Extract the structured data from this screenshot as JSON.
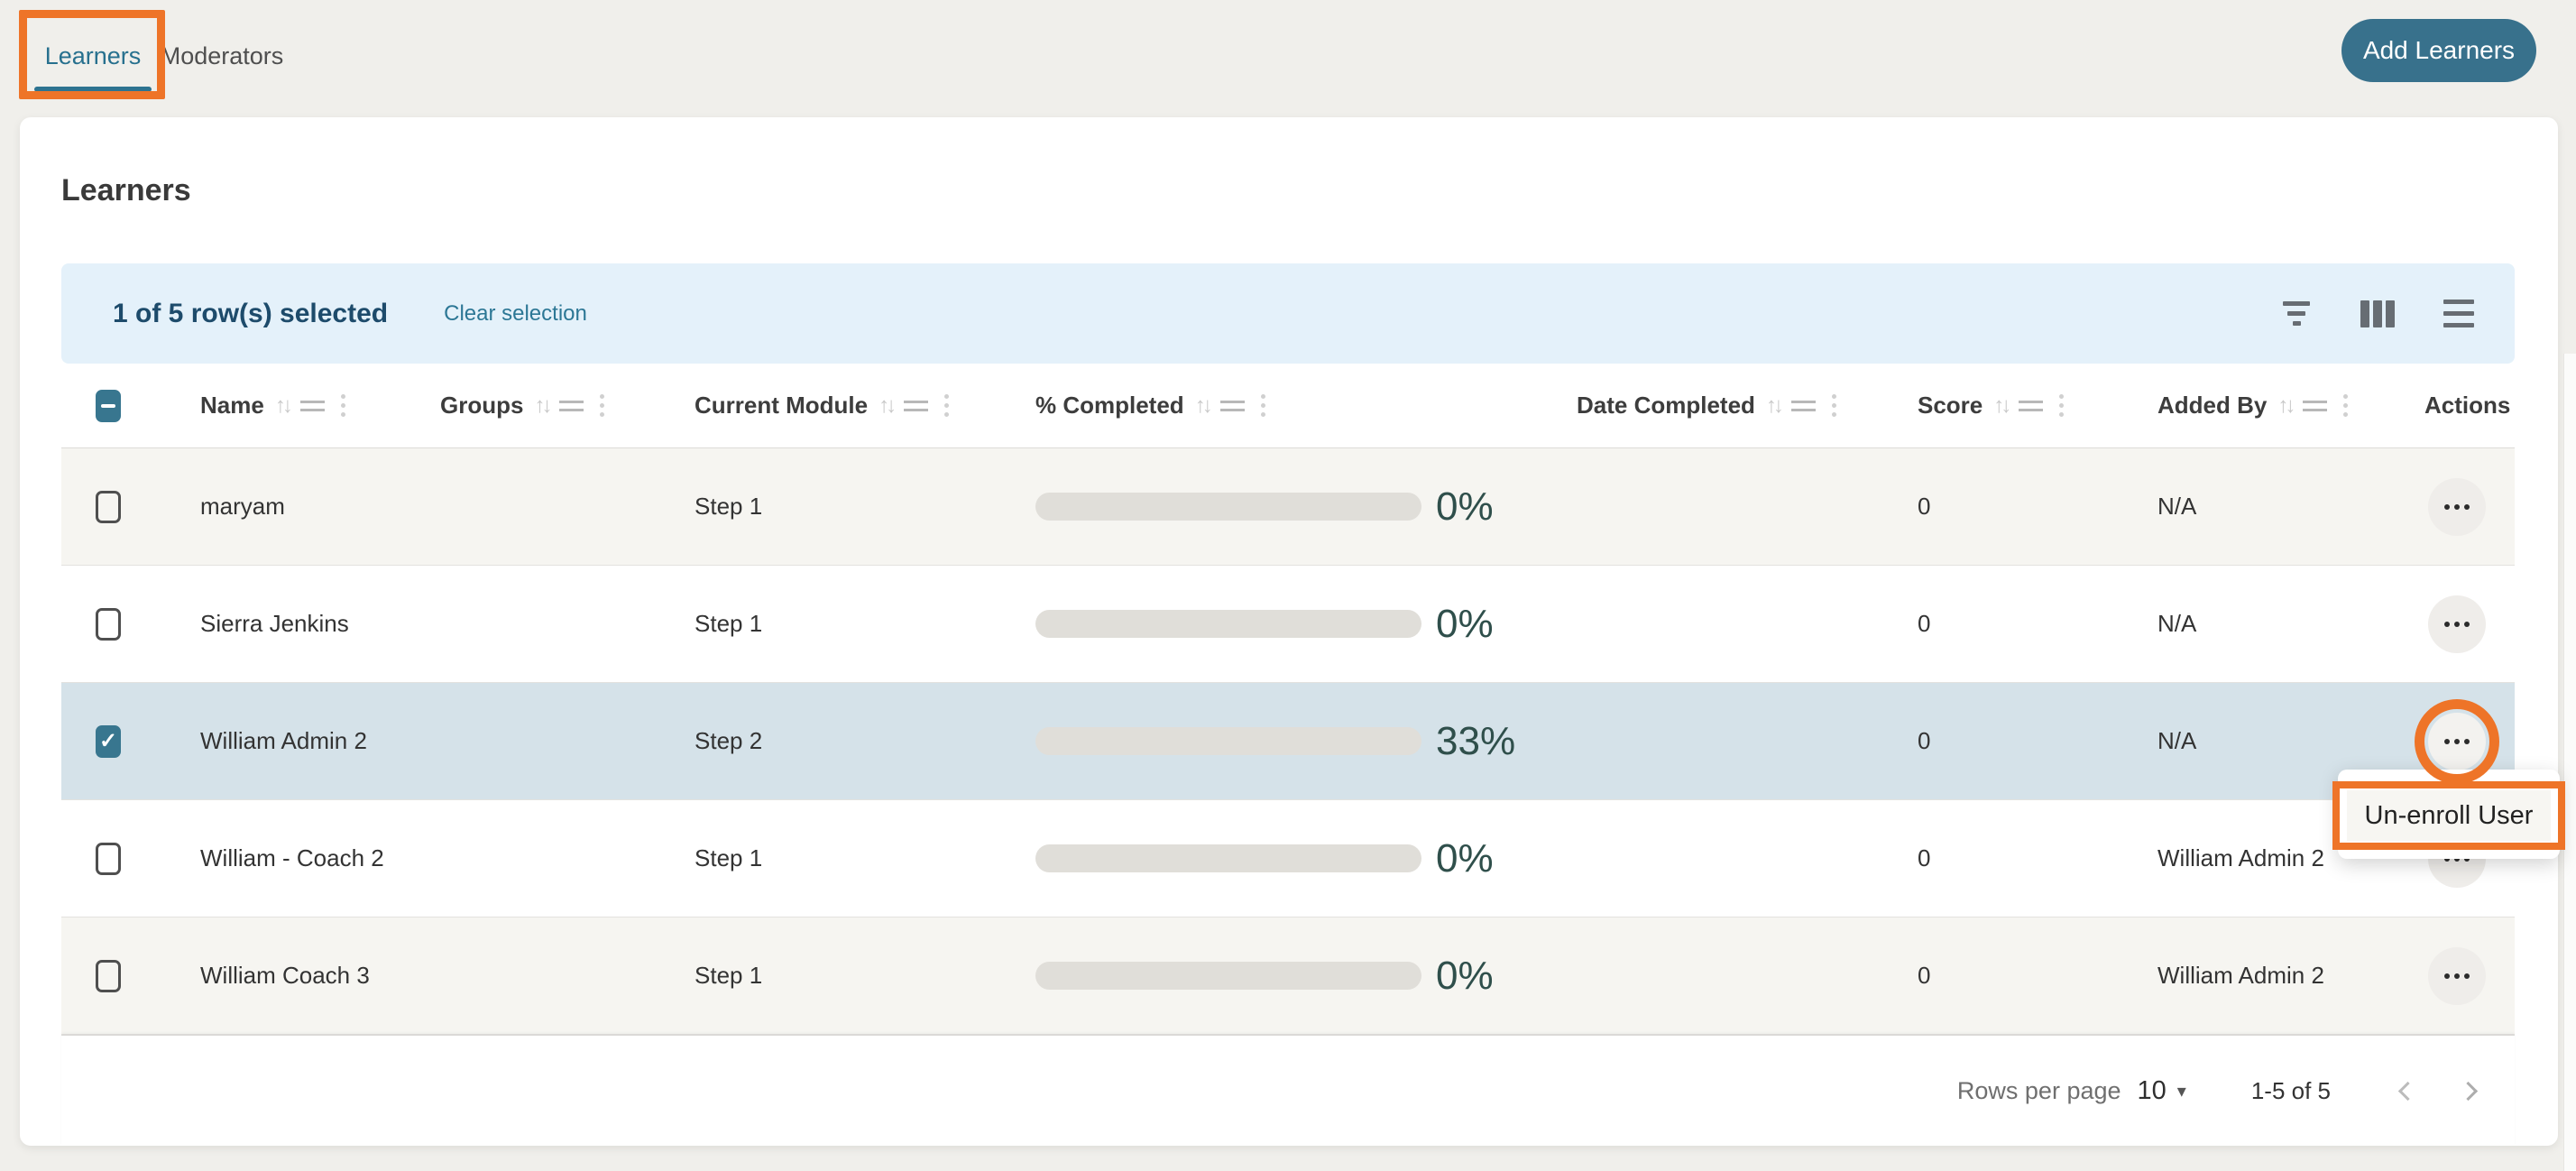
{
  "tabs": {
    "learners": {
      "label": "Learners",
      "active": true
    },
    "moderators": {
      "label": "Moderators",
      "active": false
    }
  },
  "add_button": {
    "label": "Add Learners"
  },
  "card": {
    "title": "Learners"
  },
  "toolbar": {
    "selected_text": "1 of 5 row(s) selected",
    "clear_label": "Clear selection",
    "icons": [
      "filter-icon",
      "columns-icon",
      "density-icon"
    ]
  },
  "table": {
    "columns": {
      "name": "Name",
      "groups": "Groups",
      "current_module": "Current Module",
      "percent_completed": "% Completed",
      "date_completed": "Date Completed",
      "score": "Score",
      "added_by": "Added By",
      "actions": "Actions"
    },
    "rows": [
      {
        "name": "maryam",
        "groups": "",
        "current_module": "Step 1",
        "percent": 0,
        "percent_label": "0%",
        "date_completed": "",
        "score": "0",
        "added_by": "N/A",
        "selected": false
      },
      {
        "name": "Sierra Jenkins",
        "groups": "",
        "current_module": "Step 1",
        "percent": 0,
        "percent_label": "0%",
        "date_completed": "",
        "score": "0",
        "added_by": "N/A",
        "selected": false
      },
      {
        "name": "William Admin 2",
        "groups": "",
        "current_module": "Step 2",
        "percent": 33,
        "percent_label": "33%",
        "date_completed": "",
        "score": "0",
        "added_by": "N/A",
        "selected": true
      },
      {
        "name": "William - Coach 2",
        "groups": "",
        "current_module": "Step 1",
        "percent": 0,
        "percent_label": "0%",
        "date_completed": "",
        "score": "0",
        "added_by": "William Admin 2",
        "selected": false
      },
      {
        "name": "William Coach 3",
        "groups": "",
        "current_module": "Step 1",
        "percent": 0,
        "percent_label": "0%",
        "date_completed": "",
        "score": "0",
        "added_by": "William Admin 2",
        "selected": false
      }
    ]
  },
  "menu": {
    "items": [
      {
        "label": "Un-enroll User"
      }
    ]
  },
  "pagination": {
    "rows_per_page_label": "Rows per page",
    "rows_per_page_value": "10",
    "range_label": "1-5 of 5"
  },
  "colors": {
    "annotation_orange": "#ee7428",
    "accent_teal": "#38718c",
    "tab_active": "#27708e",
    "toolbar_bg": "#e4f1fa",
    "selected_row_bg": "#d5e2e9",
    "progress_fill": "#4b9cb4",
    "percent_text": "#2f4f4b",
    "page_bg": "#f0efeb"
  }
}
